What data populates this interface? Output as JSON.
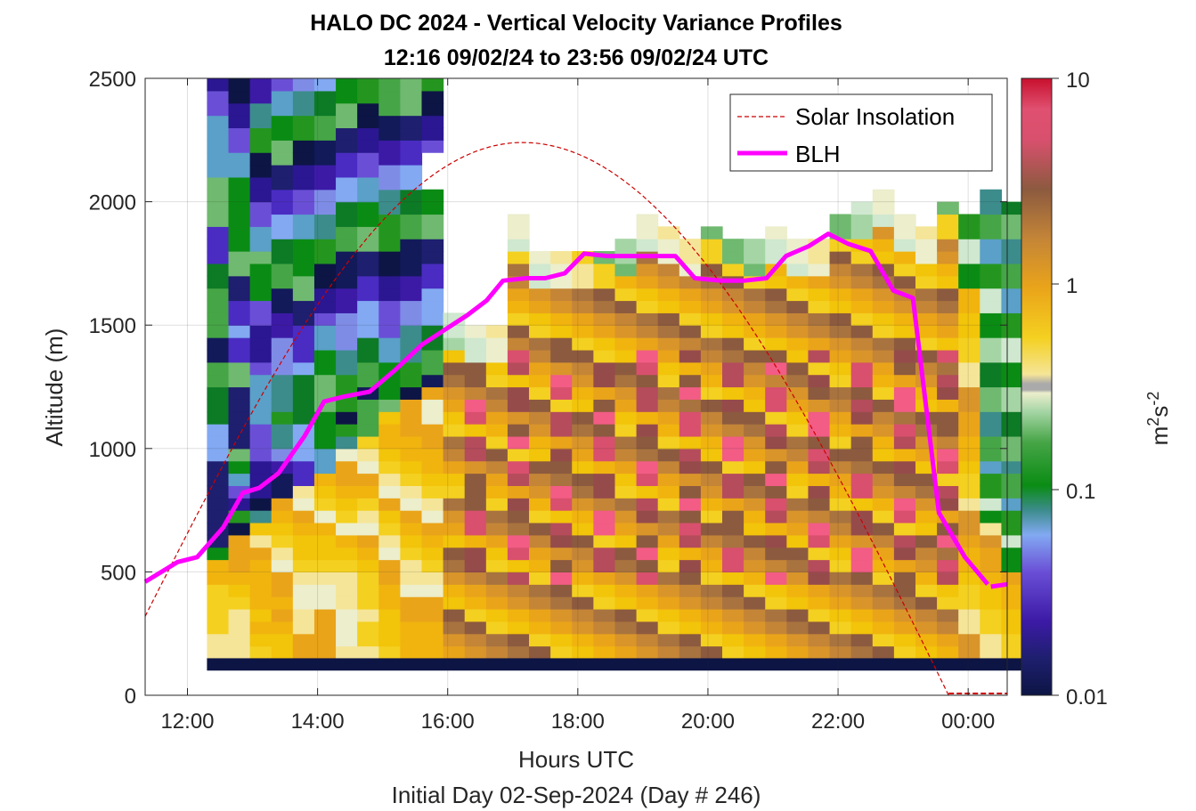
{
  "chart_data": {
    "type": "heatmap",
    "title": "HALO DC 2024 - Vertical Velocity Variance Profiles",
    "subtitle": "12:16 09/02/24 to 23:56 09/02/24  UTC",
    "xlabel": "Hours UTC",
    "footer": "Initial Day 02-Sep-2024 (Day # 246)",
    "ylabel": "Altitude (m)",
    "xlim": [
      11.35,
      24.6
    ],
    "ylim": [
      0,
      2500
    ],
    "x_ticks": [
      12,
      14,
      16,
      18,
      20,
      22,
      24
    ],
    "x_tick_labels": [
      "12:00",
      "14:00",
      "16:00",
      "18:00",
      "20:00",
      "22:00",
      "00:00"
    ],
    "y_ticks": [
      0,
      500,
      1000,
      1500,
      2000,
      2500
    ],
    "y_tick_labels": [
      "0",
      "500",
      "1000",
      "1500",
      "2000",
      "2500"
    ],
    "colorbar": {
      "label": "m²s⁻²",
      "label_base": "m",
      "label_exp1": "2",
      "label_mid": "s",
      "label_exp2": "-2",
      "scale": "log",
      "range": [
        0.01,
        10
      ],
      "ticks": [
        0.01,
        0.1,
        1,
        10
      ],
      "tick_labels": [
        "0.01",
        "0.1",
        "1",
        "10"
      ]
    },
    "legend": {
      "placement": "top-right",
      "entries": [
        {
          "label": "Solar Insolation",
          "color": "#cc0000",
          "style": "dashed"
        },
        {
          "label": "BLH",
          "color": "#ff00ff",
          "style": "solid"
        }
      ]
    },
    "grid": true,
    "series": [
      {
        "name": "BLH",
        "color": "#ff00ff",
        "x": [
          11.35,
          11.85,
          12.15,
          12.55,
          12.85,
          13.1,
          13.4,
          13.8,
          14.1,
          14.4,
          14.8,
          15.2,
          15.6,
          15.95,
          16.3,
          16.6,
          16.85,
          17.2,
          17.5,
          17.8,
          18.1,
          18.45,
          18.8,
          19.15,
          19.5,
          19.8,
          20.2,
          20.55,
          20.9,
          21.2,
          21.55,
          21.85,
          22.15,
          22.5,
          22.85,
          23.15,
          23.55,
          23.95,
          24.3
        ],
        "values": [
          460,
          540,
          560,
          680,
          820,
          840,
          900,
          1050,
          1190,
          1210,
          1230,
          1320,
          1420,
          1480,
          1540,
          1600,
          1680,
          1690,
          1690,
          1710,
          1790,
          1780,
          1780,
          1780,
          1780,
          1690,
          1680,
          1680,
          1690,
          1780,
          1820,
          1870,
          1830,
          1800,
          1640,
          1610,
          740,
          560,
          450
        ]
      },
      {
        "name": "BLH segment",
        "x": [
          24.35,
          24.6
        ],
        "values": [
          440,
          450
        ]
      }
    ],
    "solar_insolation": {
      "shape": "half-sine",
      "x_start": 11.35,
      "x_peak": 17.15,
      "x_end": 23.7,
      "y_start": 320,
      "y_peak": 2240,
      "floor_x": [
        23.7,
        24.6
      ],
      "floor_y": 0
    },
    "heatmap": {
      "x_start": 12.3,
      "col_width": 0.33,
      "row_height": 50,
      "bottom_band": {
        "y": [
          100,
          150
        ],
        "color": "#0d1545"
      },
      "palette": [
        "#0d1545",
        "#121a5a",
        "#1e1f6e",
        "#2b1791",
        "#3c1aa6",
        "#4a2cc2",
        "#6a4fd6",
        "#7f8ce6",
        "#82a9f2",
        "#5aa0c8",
        "#3c8c8c",
        "#0d7a26",
        "#0a8c14",
        "#24961f",
        "#46a546",
        "#70b970",
        "#a5d5a5",
        "#cfe8cf",
        "#eceecc",
        "#f5e598",
        "#f4d020",
        "#f2c40a",
        "#f1b40f",
        "#eaa41a",
        "#d9952a",
        "#c48537",
        "#a8733f",
        "#8c5a3f",
        "#964b4b",
        "#b44c5c",
        "#d8506d",
        "#f25c85"
      ],
      "columns": [
        {
          "top": 2500,
          "codes": "BBCCCCEEEGGGGGGGIIIJJJKKLLKKKKJJHHHFFFFDDDDDCCBBAA",
          "gap": []
        },
        {
          "top": 2500,
          "codes": "AAAABCDEEEFEGHIJKLLLLLKKMMNMMLLKKJJJJJJIIHHGGFFEEA",
          "gap": []
        },
        {
          "top": 2500,
          "codes": "ABCBCCCCDFHIKLLLMMMNNNNMLLLMMOOOPNNMMLLKKJJIIGGFFE",
          "gap": []
        },
        {
          "top": 2500,
          "codes": "AABCBCCDEFGHIKKLMNNONNNMMMLLKKJJIIHHGGFFEEDDCCBBAB",
          "gap": []
        },
        {
          "top": 2500,
          "codes": "BBDDCCDEFFGHIJLLMMMNNNNMLLLKKJJIIIHHGGFFEEDDCCBBAA",
          "gap": []
        },
        {
          "top": 2500,
          "codes": "AAAABBCDEEFHJKLMMNNNOOONNMMLKKJJIIHHGGFFEEDDCCBBAA",
          "gap": []
        },
        {
          "top": 2500,
          "codes": "BAAABBBCDEGIJKLLMMNONNNMMLLLKKJJJIIHHGGFFEEDDCCBBB",
          "gap": []
        },
        {
          "top": 2500,
          "codes": "ABBABBBCDEFGHJKLMNNNNONNMMLLLKKJJIIHHGGFFEEDDCCBBA",
          "gap": []
        },
        {
          "top": 2500,
          "codes": "ABBBCCDDEFGHJKLMNOONNMMMLLKKKJJIIHHHGGFFEEDDCCCBBA",
          "gap": []
        },
        {
          "top": 2500,
          "codes": "BBBCCDEEFGHIJKLMNNOOONMMLLLKKJJIIIHHGGFFEEDDCCCBBB",
          "gap": []
        },
        {
          "top": 2500,
          "codes": "AAABBCDEFGHIJKLMMNNOONNMMLLKKKJJIIHHGGFFEEDDCCBBAA",
          "gap": [
            2050,
            2150
          ]
        },
        {
          "top": 1575,
          "codes": "AABBCCDEEFGGHIIJKKLLMMNNOOPPQQRRSSTTUUVV",
          "gap": []
        },
        {
          "top": 1525,
          "codes": "AABBCCDEEFGGHIIJKKLLMMNNOOPPQQRRSSTTUUVV",
          "gap": []
        },
        {
          "top": 1525,
          "codes": "AABBCCDEEFGGHIIJKKLLMMNNOOPPQQRRSSTTUUVV",
          "gap": []
        },
        {
          "top": 1950,
          "codes": "AABBCCDEEFGGHIIJKKLLMMNNOOPPQQRRSSTTUUVVWWXXYYZZ",
          "gap": []
        },
        {
          "top": 1825,
          "codes": "AABBCCDEEFGGHIIJKKLLMMNNOOPPQQRRSSTTUUVVWWXXYY",
          "gap": []
        },
        {
          "top": 1825,
          "codes": "AABBCCDEEFGGHIIJKKLLMMNNOOPPQQRRSSTTUUVVWWXXYY",
          "gap": []
        },
        {
          "top": 1825,
          "codes": "AABBCCDEEFGGHIIJKKLLMMNNOOPPQQRRSSTTUUVVWWXXYY",
          "gap": []
        },
        {
          "top": 1825,
          "codes": "AABBCCDEEFGGHIIJKKLLMMNNOOPPQQRRSSTTUUVVWWXXYY",
          "gap": []
        },
        {
          "top": 1875,
          "codes": "AABBCCDEEFGGHIIJKKLLMMNNOOPPQQRRSSTTUUVVWWXXYYZZ",
          "gap": []
        },
        {
          "top": 1975,
          "codes": "AABBCCDEEFGGHIIJKKLLMMNNOOPPQQRRSSTTUUVVWWXXYYZZAB",
          "gap": []
        },
        {
          "top": 1925,
          "codes": "AABBCCDEEFGGHIIJKKLLMMNNOOPPQQRRSSTTUUVVWWXXYYZZ",
          "gap": []
        },
        {
          "top": 1875,
          "codes": "AABBCCDEEFGGHIIJKKLLMMNNOOPPQQRRSSTTUUVVWWXXYYZZ",
          "gap": []
        },
        {
          "top": 1925,
          "codes": "AABBCCDEEFGGHIIJKKLLMMNNOOPPQQRRSSTTUUVVWWXXYYZZ",
          "gap": []
        },
        {
          "top": 1875,
          "codes": "AABBCCDEEFGGHIIJKKLLMMNNOOPPQQRRSSTTUUVVWWXXYYZZ",
          "gap": []
        },
        {
          "top": 1875,
          "codes": "AABBCCDEEFGGHIIJKKLLMMNNOOPPQQRRSSTTUUVVWWXXYYZZ",
          "gap": []
        },
        {
          "top": 1925,
          "codes": "AABBCCDEEFGGHIIJKKLLMMNNOOPPQQRRSSTTUUVVWWXXYYZZ",
          "gap": []
        },
        {
          "top": 1875,
          "codes": "AABBCCDEEFGGHIIJKKLLMMNNOOPPQQRRSSTTUUVVWWXXYYZZ",
          "gap": []
        },
        {
          "top": 1875,
          "codes": "AABBCCDEEFGGHIIJKKLLMMNNOOPPQQRRSSTTUUVVWWXXYYZZ",
          "gap": []
        },
        {
          "top": 1975,
          "codes": "AABBCCDEEFGGHIIJKKLLMMNNOOPPQQRRSSTTUUVVWWXXYYZZAB",
          "gap": []
        },
        {
          "top": 2025,
          "codes": "AABBCCDEEFGGHIIJKKLLMMNNOOPPQQRRSSTTUUVVWWXXYYZZABCD",
          "gap": []
        },
        {
          "top": 2075,
          "codes": "AABBCCDEEFGGHIIJKKLLMMNNOOPPQQRRSSTTUUVVWWXXYYZZABCDEF",
          "gap": []
        },
        {
          "top": 1975,
          "codes": "AABBCCDEEFGGHIIJKKLLMMNNOOPPQQRRSSTTUUVVWWXXYYZZAB",
          "gap": []
        },
        {
          "top": 1925,
          "codes": "AABBCCDEEFGGHIIJKKLLMMNNOOPPQQRRSSTTUUVVWWXXYYZZ",
          "gap": []
        },
        {
          "top": 2025,
          "codes": "AABBCCDEEFGGHIIJKKLLMMNNOOPPQQRRSSTTUUVVWWXXYYZZABCD",
          "gap": []
        },
        {
          "top": 1975,
          "codes": "AABBCCDEEFGGHIIJKKLLMMNNOOPPQQRRSSTTUUVVWWXXYYZZAB",
          "gap": []
        },
        {
          "top": 2075,
          "codes": "AABBCCDEEFGGHIIJKKLLMMNNOOPPQQRRSSTTUUVVWWXXYYZZABCDEF",
          "gap": []
        },
        {
          "top": 2025,
          "codes": "AABBCCDEEFGGHIIJKKLLMMNNOOPPQQRRSSTTUUVVWWXXYYZZABCD",
          "gap": []
        }
      ]
    }
  }
}
